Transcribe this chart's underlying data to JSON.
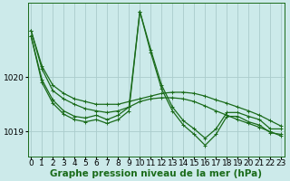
{
  "background_color": "#cceaea",
  "plot_bg_color": "#cceaea",
  "grid_color": "#aacccc",
  "line_color": "#1a6b1a",
  "xlabel": "Graphe pression niveau de la mer (hPa)",
  "xlabel_fontsize": 7.5,
  "tick_fontsize": 6.5,
  "yticks": [
    1019,
    1020
  ],
  "ylim": [
    1018.55,
    1021.35
  ],
  "xlim": [
    -0.3,
    23.3
  ],
  "xticks": [
    0,
    1,
    2,
    3,
    4,
    5,
    6,
    7,
    8,
    9,
    10,
    11,
    12,
    13,
    14,
    15,
    16,
    17,
    18,
    19,
    20,
    21,
    22,
    23
  ],
  "series": [
    [
      1020.85,
      1020.2,
      1019.85,
      1019.7,
      1019.6,
      1019.55,
      1019.5,
      1019.5,
      1019.5,
      1019.55,
      1019.6,
      1019.65,
      1019.7,
      1019.72,
      1019.72,
      1019.7,
      1019.65,
      1019.58,
      1019.52,
      1019.45,
      1019.38,
      1019.3,
      1019.2,
      1019.1
    ],
    [
      1020.85,
      1020.15,
      1019.75,
      1019.6,
      1019.5,
      1019.42,
      1019.38,
      1019.35,
      1019.38,
      1019.45,
      1019.55,
      1019.6,
      1019.62,
      1019.62,
      1019.6,
      1019.55,
      1019.47,
      1019.38,
      1019.3,
      1019.22,
      1019.15,
      1019.08,
      1019.0,
      1018.92
    ],
    [
      1020.75,
      1019.95,
      1019.58,
      1019.38,
      1019.28,
      1019.25,
      1019.3,
      1019.22,
      1019.3,
      1019.45,
      1021.2,
      1020.5,
      1019.85,
      1019.45,
      1019.2,
      1019.05,
      1018.88,
      1019.05,
      1019.35,
      1019.35,
      1019.28,
      1019.22,
      1019.05,
      1019.05
    ],
    [
      1020.75,
      1019.9,
      1019.52,
      1019.32,
      1019.22,
      1019.18,
      1019.22,
      1019.15,
      1019.22,
      1019.38,
      1021.2,
      1020.45,
      1019.78,
      1019.38,
      1019.12,
      1018.95,
      1018.75,
      1018.95,
      1019.28,
      1019.28,
      1019.18,
      1019.12,
      1018.98,
      1018.95
    ]
  ],
  "marker": "+",
  "markersize": 3.5,
  "linewidth": 0.9
}
